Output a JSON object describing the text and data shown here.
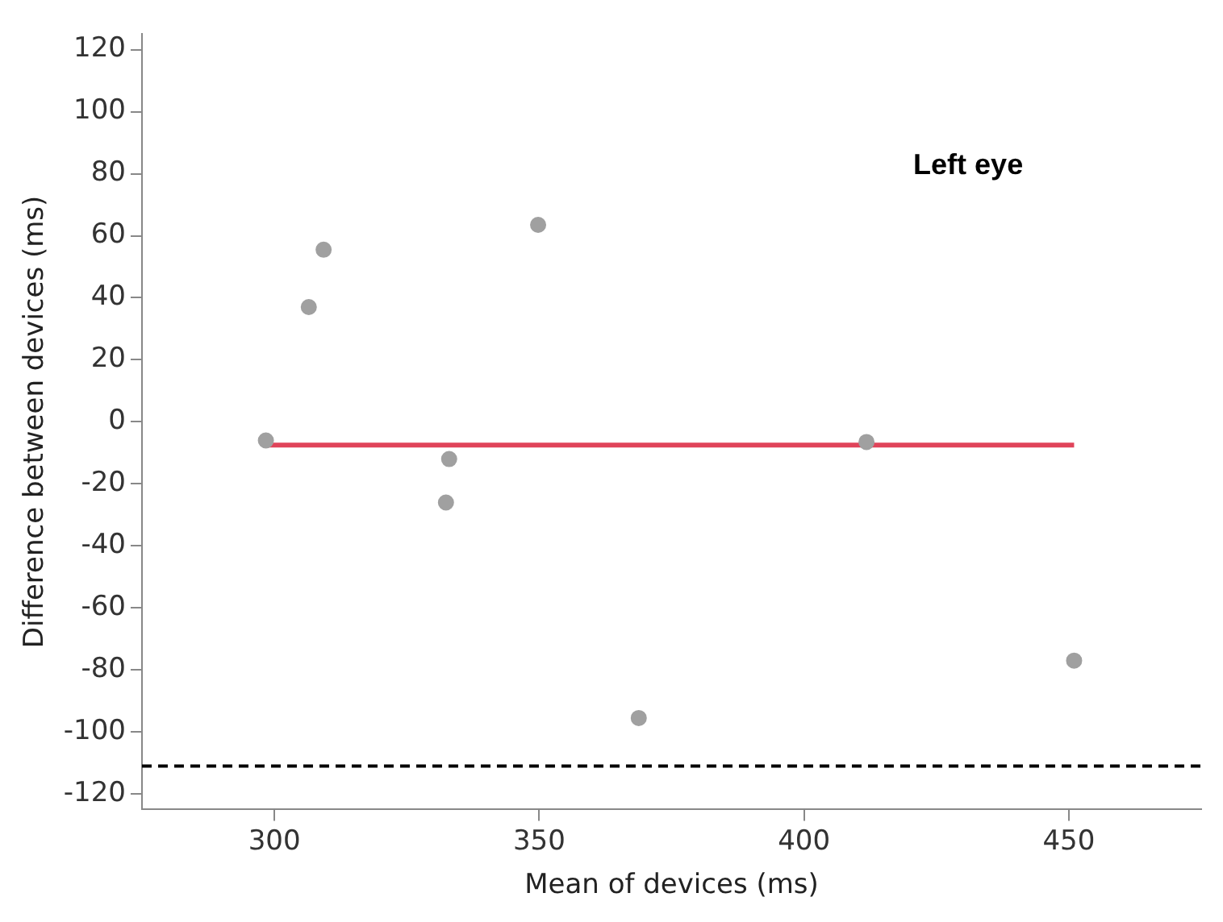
{
  "chart_data": {
    "type": "scatter",
    "xlabel": "Mean of devices (ms)",
    "ylabel": "Difference between devices (ms)",
    "xlim": [
      275,
      475
    ],
    "xticks": [
      300,
      350,
      400,
      450
    ],
    "ylim": [
      -125,
      125
    ],
    "yticks": [
      -120,
      -100,
      -80,
      -60,
      -40,
      -20,
      0,
      20,
      40,
      60,
      80,
      100,
      120
    ],
    "grid": false,
    "series": [
      {
        "type": "scatter",
        "marker": "circle",
        "color": "#a0a0a0",
        "x": [
          298.4,
          306.5,
          309.3,
          333,
          332.4,
          349.8,
          368.8,
          411.8,
          451
        ],
        "values": [
          -6,
          37,
          55.5,
          -12,
          -26,
          63.5,
          -95.5,
          -6.5,
          -77
        ]
      },
      {
        "type": "line",
        "marker": "none",
        "color": "#e0445a",
        "x": [
          298.4,
          451
        ],
        "values": [
          -7.5,
          -7.5
        ]
      }
    ],
    "ref_lines": [
      {
        "axis": "y",
        "value": -111,
        "color": "#000000",
        "line_style": "dashed"
      }
    ],
    "annotations": [
      "Left eye"
    ]
  }
}
